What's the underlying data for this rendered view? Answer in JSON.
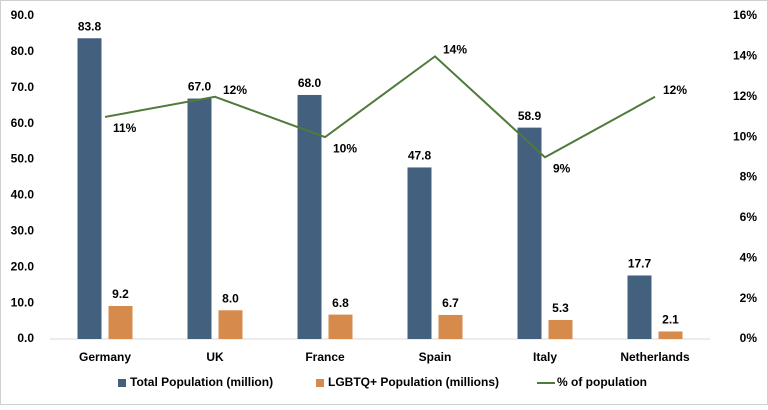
{
  "chart_data": {
    "type": "bar-line",
    "categories": [
      "Germany",
      "UK",
      "France",
      "Spain",
      "Italy",
      "Netherlands"
    ],
    "series": [
      {
        "name": "Total Population (million)",
        "type": "bar",
        "color": "#44607f",
        "values": [
          83.8,
          67.0,
          68.0,
          47.8,
          58.9,
          17.7
        ],
        "value_labels": [
          "83.8",
          "67.0",
          "68.0",
          "47.8",
          "58.9",
          "17.7"
        ]
      },
      {
        "name": "LGBTQ+ Population (millions)",
        "type": "bar",
        "color": "#d68a4c",
        "values": [
          9.2,
          8.0,
          6.8,
          6.7,
          5.3,
          2.1
        ],
        "value_labels": [
          "9.2",
          "8.0",
          "6.8",
          "6.7",
          "5.3",
          "2.1"
        ]
      },
      {
        "name": "% of population",
        "type": "line",
        "axis": "y2",
        "color": "#4f7a3a",
        "label_color": "#c8502c",
        "values": [
          11,
          12,
          10,
          14,
          9,
          12
        ],
        "value_labels": [
          "11%",
          "12%",
          "10%",
          "14%",
          "9%",
          "12%"
        ]
      }
    ],
    "ylim": [
      0,
      90
    ],
    "yticks": [
      {
        "value": 0,
        "label": "0.0"
      },
      {
        "value": 10,
        "label": "10.0"
      },
      {
        "value": 20,
        "label": "20.0"
      },
      {
        "value": 30,
        "label": "30.0"
      },
      {
        "value": 40,
        "label": "40.0"
      },
      {
        "value": 50,
        "label": "50.0"
      },
      {
        "value": 60,
        "label": "60.0"
      },
      {
        "value": 70,
        "label": "70.0"
      },
      {
        "value": 80,
        "label": "80.0"
      },
      {
        "value": 90,
        "label": "90.0"
      }
    ],
    "y2lim": [
      0,
      16
    ],
    "y2ticks": [
      {
        "value": 0,
        "label": "0%"
      },
      {
        "value": 2,
        "label": "2%"
      },
      {
        "value": 4,
        "label": "4%"
      },
      {
        "value": 6,
        "label": "6%"
      },
      {
        "value": 8,
        "label": "8%"
      },
      {
        "value": 10,
        "label": "10%"
      },
      {
        "value": 12,
        "label": "12%"
      },
      {
        "value": 14,
        "label": "14%"
      },
      {
        "value": 16,
        "label": "16%"
      }
    ],
    "grid": false,
    "legend": "bottom"
  }
}
